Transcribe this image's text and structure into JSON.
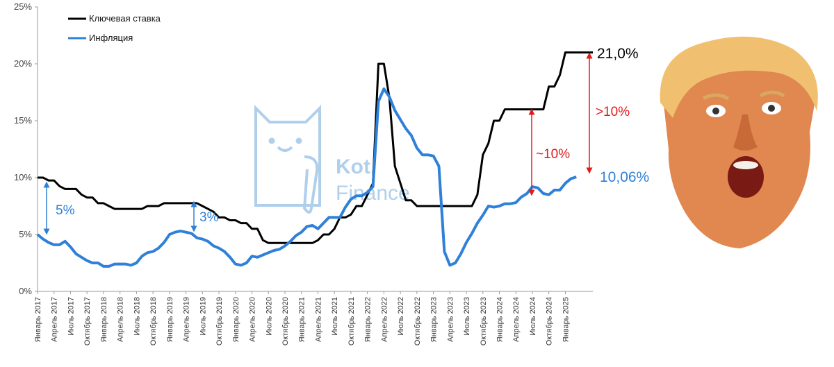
{
  "chart_data": {
    "type": "line",
    "title": "",
    "xlabel": "",
    "ylabel": "",
    "ylim": [
      0,
      25
    ],
    "yticks": [
      "0%",
      "5%",
      "10%",
      "15%",
      "20%",
      "25%"
    ],
    "x_tick_labels": [
      "Январь 2017",
      "Апрель 2017",
      "Июль 2017",
      "Октябрь 2017",
      "Январь 2018",
      "Апрель 2018",
      "Июль 2018",
      "Октябрь 2018",
      "Январь 2019",
      "Апрель 2019",
      "Июль 2019",
      "Октябрь 2019",
      "Январь 2020",
      "Апрель 2020",
      "Июль 2020",
      "Октябрь 2020",
      "Январь 2021",
      "Апрель 2021",
      "Июль 2021",
      "Октябрь 2021",
      "Январь 2022",
      "Апрель 2022",
      "Июль 2022",
      "Октябрь 2022",
      "Январь 2023",
      "Апрель 2023",
      "Июль 2023",
      "Октябрь 2023",
      "Январь 2024",
      "Апрель 2024",
      "Июль 2024",
      "Октябрь 2024",
      "Январь 2025"
    ],
    "legend_position": "top-left",
    "grid": false,
    "series": [
      {
        "name": "Ключевая ставка",
        "color": "#000000",
        "values": [
          10.0,
          10.0,
          9.75,
          9.75,
          9.25,
          9.0,
          9.0,
          9.0,
          8.5,
          8.25,
          8.25,
          7.75,
          7.75,
          7.5,
          7.25,
          7.25,
          7.25,
          7.25,
          7.25,
          7.25,
          7.5,
          7.5,
          7.5,
          7.75,
          7.75,
          7.75,
          7.75,
          7.75,
          7.75,
          7.75,
          7.5,
          7.25,
          7.0,
          6.5,
          6.5,
          6.25,
          6.25,
          6.0,
          6.0,
          5.5,
          5.5,
          4.5,
          4.25,
          4.25,
          4.25,
          4.25,
          4.25,
          4.25,
          4.25,
          4.25,
          4.25,
          4.5,
          5.0,
          5.0,
          5.5,
          6.5,
          6.5,
          6.75,
          7.5,
          7.5,
          8.5,
          9.5,
          20.0,
          20.0,
          17.0,
          11.0,
          9.5,
          8.0,
          8.0,
          7.5,
          7.5,
          7.5,
          7.5,
          7.5,
          7.5,
          7.5,
          7.5,
          7.5,
          7.5,
          7.5,
          8.5,
          12.0,
          13.0,
          15.0,
          15.0,
          16.0,
          16.0,
          16.0,
          16.0,
          16.0,
          16.0,
          16.0,
          16.0,
          18.0,
          18.0,
          19.0,
          21.0,
          21.0,
          21.0,
          21.0,
          21.0,
          21.0
        ]
      },
      {
        "name": "Инфляция",
        "color": "#2f80d8",
        "values": [
          5.0,
          4.6,
          4.3,
          4.1,
          4.1,
          4.4,
          3.9,
          3.3,
          3.0,
          2.7,
          2.5,
          2.5,
          2.2,
          2.2,
          2.4,
          2.4,
          2.4,
          2.3,
          2.5,
          3.1,
          3.4,
          3.5,
          3.8,
          4.3,
          5.0,
          5.2,
          5.3,
          5.2,
          5.1,
          4.7,
          4.6,
          4.4,
          4.0,
          3.8,
          3.5,
          3.0,
          2.4,
          2.3,
          2.5,
          3.1,
          3.0,
          3.2,
          3.4,
          3.6,
          3.7,
          4.0,
          4.4,
          4.9,
          5.2,
          5.7,
          5.8,
          5.5,
          6.0,
          6.5,
          6.5,
          6.5,
          7.4,
          8.1,
          8.4,
          8.4,
          8.7,
          9.2,
          16.7,
          17.8,
          17.1,
          15.9,
          15.1,
          14.3,
          13.7,
          12.6,
          12.0,
          12.0,
          11.9,
          11.0,
          3.5,
          2.3,
          2.5,
          3.3,
          4.3,
          5.1,
          6.0,
          6.7,
          7.5,
          7.4,
          7.5,
          7.7,
          7.7,
          7.8,
          8.3,
          8.6,
          9.2,
          9.1,
          8.6,
          8.5,
          8.9,
          8.9,
          9.5,
          9.9,
          10.06
        ]
      }
    ],
    "annotations": [
      {
        "text": "5%",
        "color": "#2f80d8"
      },
      {
        "text": "3%",
        "color": "#2f80d8"
      },
      {
        "text": "~10%",
        "color": "#e31a1c"
      },
      {
        "text": ">10%",
        "color": "#e31a1c"
      }
    ],
    "end_labels": {
      "rate": {
        "text": "21,0%",
        "color": "#000000"
      },
      "inflation": {
        "text": "10,06%",
        "color": "#2f80d8"
      }
    }
  },
  "watermark": {
    "line1": "Kot.",
    "line2": "Finance",
    "icon": "cat-icon",
    "color": "#6fa8dc"
  },
  "photo": {
    "icon": "surprised-face-icon"
  }
}
